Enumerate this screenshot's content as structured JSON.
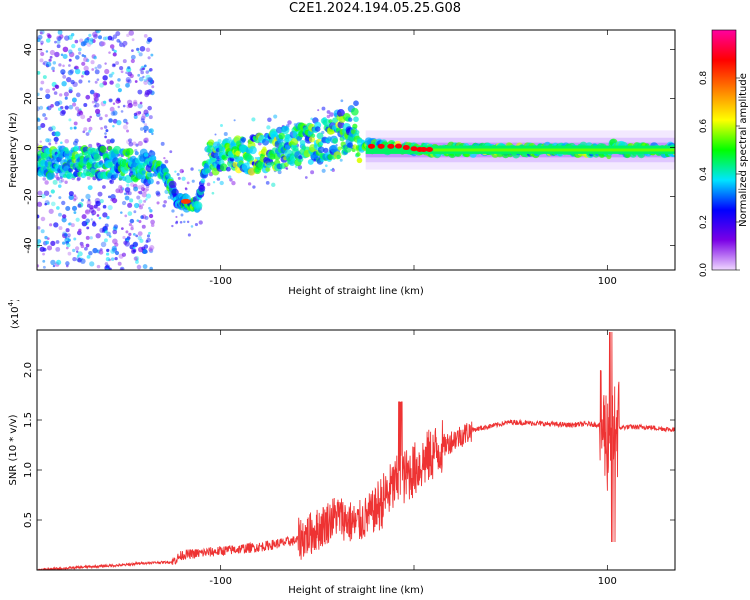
{
  "page": {
    "title": "C2E1.2024.194.05.25.G08"
  },
  "chart_data": [
    {
      "type": "heatmap",
      "xlabel": "Height of straight line (km)",
      "ylabel": "Frequency (Hz)",
      "xlim": [
        -195,
        135
      ],
      "ylim": [
        -50,
        48
      ],
      "xticks": [
        -100,
        0,
        100
      ],
      "xtick_labels": [
        "-100",
        "",
        "100"
      ],
      "yticks": [
        -40,
        -20,
        0,
        20,
        40
      ],
      "colorbar": {
        "label": "Normalized spectral amplitude",
        "range": [
          0.0,
          1.0
        ],
        "ticks": [
          0.0,
          0.2,
          0.4,
          0.6,
          0.8
        ],
        "tick_labels": [
          "0.0",
          "0.2",
          "0.4",
          "0.6",
          "0.8"
        ],
        "colormap": [
          "#f0d8ff",
          "#7a00e6",
          "#0000ff",
          "#00e5ff",
          "#00ff00",
          "#ffff00",
          "#ff8000",
          "#ff0000",
          "#ff00a0"
        ]
      },
      "ridge": [
        {
          "x": -190,
          "y": -6
        },
        {
          "x": -160,
          "y": -6
        },
        {
          "x": -140,
          "y": -8
        },
        {
          "x": -130,
          "y": -9
        },
        {
          "x": -122,
          "y": -22
        },
        {
          "x": -112,
          "y": -23
        },
        {
          "x": -107,
          "y": -4
        },
        {
          "x": -85,
          "y": -3
        },
        {
          "x": -60,
          "y": 1
        },
        {
          "x": -40,
          "y": 5
        },
        {
          "x": -30,
          "y": 9
        },
        {
          "x": -28,
          "y": 1
        },
        {
          "x": -10,
          "y": 0
        },
        {
          "x": 10,
          "y": -1
        },
        {
          "x": 20,
          "y": -1
        },
        {
          "x": 60,
          "y": -1
        },
        {
          "x": 97,
          "y": -1
        },
        {
          "x": 100,
          "y": -3
        },
        {
          "x": 103,
          "y": 1
        },
        {
          "x": 110,
          "y": -1
        },
        {
          "x": 135,
          "y": -1
        }
      ]
    },
    {
      "type": "line",
      "xlabel": "Height of straight line (km)",
      "ylabel": "SNR (10 * v/v)",
      "y_multiplier_label": "(x10",
      "y_multiplier_exp": "4",
      "xlim": [
        -195,
        135
      ],
      "ylim": [
        0,
        2.4
      ],
      "xticks": [
        -100,
        0,
        100
      ],
      "xtick_labels": [
        "-100",
        "",
        "100"
      ],
      "yticks": [
        0.5,
        1.0,
        1.5,
        2.0
      ],
      "ytick_labels": [
        "0.5",
        "1.0",
        "1.5",
        "2.0"
      ],
      "series": [
        {
          "color": "#ee3333",
          "x": [
            -195,
            -170,
            -150,
            -140,
            -125,
            -120,
            -100,
            -80,
            -60,
            -50,
            -40,
            -30,
            -20,
            -10,
            0,
            10,
            20,
            30,
            40,
            50,
            60,
            70,
            80,
            90,
            97,
            100,
            103,
            105,
            110,
            120,
            135
          ],
          "y": [
            0.0,
            0.03,
            0.05,
            0.07,
            0.08,
            0.15,
            0.19,
            0.23,
            0.3,
            0.4,
            0.55,
            0.45,
            0.6,
            0.85,
            1.0,
            1.17,
            1.3,
            1.4,
            1.44,
            1.48,
            1.47,
            1.46,
            1.45,
            1.46,
            1.45,
            1.3,
            1.45,
            1.42,
            1.43,
            1.43,
            1.4
          ]
        }
      ]
    }
  ]
}
